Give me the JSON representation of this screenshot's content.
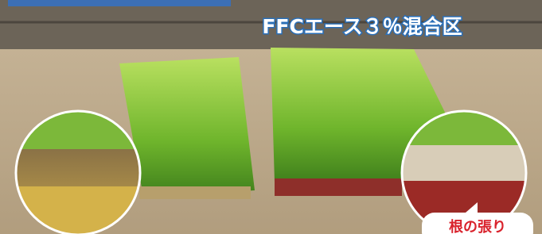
{
  "overlay_title": "FFCエース３％混合区",
  "callout": "根の張り"
}
